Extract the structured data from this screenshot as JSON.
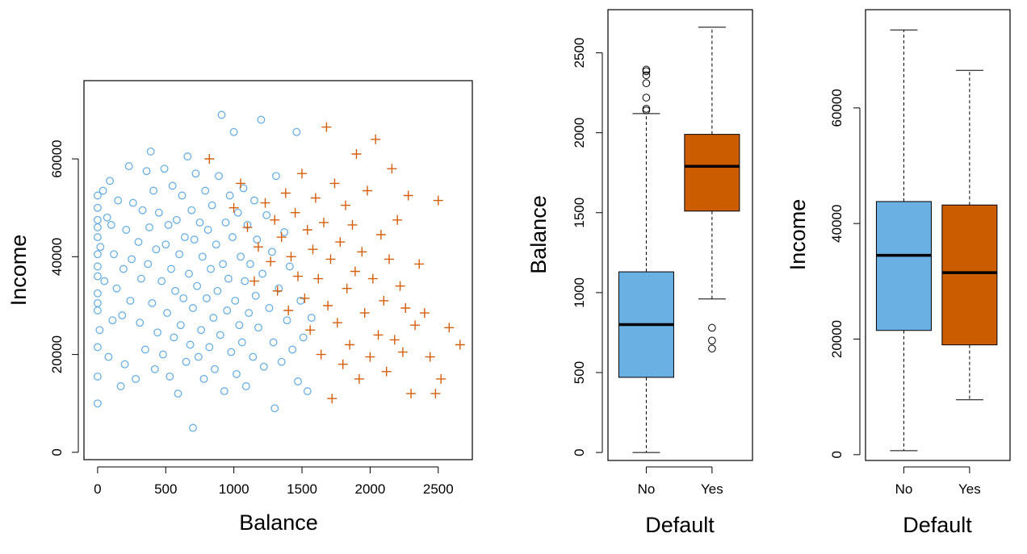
{
  "chart_data": [
    {
      "type": "scatter",
      "xlabel": "Balance",
      "ylabel": "Income",
      "xlim": [
        -100,
        2750
      ],
      "ylim": [
        -1500,
        76000
      ],
      "xticks": [
        "0",
        "500",
        "1000",
        "1500",
        "2000",
        "2500"
      ],
      "xtick_values": [
        0,
        500,
        1000,
        1500,
        2000,
        2500
      ],
      "yticks": [
        "0",
        "20000",
        "40000",
        "60000"
      ],
      "ytick_values": [
        0,
        20000,
        40000,
        60000
      ],
      "grid": false,
      "series": [
        {
          "name": "No",
          "marker": "circle",
          "color": "#6ab0e2",
          "points": [
            [
              0,
              10000
            ],
            [
              0,
              15500
            ],
            [
              0,
              21500
            ],
            [
              0,
              29000
            ],
            [
              0,
              30500
            ],
            [
              0,
              32500
            ],
            [
              0,
              36000
            ],
            [
              0,
              38000
            ],
            [
              0,
              40500
            ],
            [
              0,
              44000
            ],
            [
              0,
              46000
            ],
            [
              0,
              47500
            ],
            [
              0,
              50000
            ],
            [
              0,
              52500
            ],
            [
              15,
              25000
            ],
            [
              20,
              42000
            ],
            [
              40,
              53500
            ],
            [
              50,
              35000
            ],
            [
              70,
              48000
            ],
            [
              80,
              19500
            ],
            [
              90,
              55500
            ],
            [
              100,
              46500
            ],
            [
              110,
              27000
            ],
            [
              120,
              40500
            ],
            [
              140,
              33500
            ],
            [
              150,
              51500
            ],
            [
              170,
              13500
            ],
            [
              180,
              28000
            ],
            [
              190,
              37500
            ],
            [
              200,
              18000
            ],
            [
              210,
              45500
            ],
            [
              230,
              58500
            ],
            [
              240,
              31000
            ],
            [
              250,
              39500
            ],
            [
              260,
              51000
            ],
            [
              280,
              15000
            ],
            [
              300,
              43000
            ],
            [
              310,
              26500
            ],
            [
              320,
              35500
            ],
            [
              330,
              49500
            ],
            [
              350,
              21000
            ],
            [
              360,
              57500
            ],
            [
              370,
              38500
            ],
            [
              380,
              46000
            ],
            [
              390,
              61500
            ],
            [
              400,
              30500
            ],
            [
              410,
              53500
            ],
            [
              420,
              17000
            ],
            [
              430,
              41500
            ],
            [
              440,
              24500
            ],
            [
              450,
              49000
            ],
            [
              470,
              35000
            ],
            [
              480,
              20000
            ],
            [
              490,
              58000
            ],
            [
              500,
              42500
            ],
            [
              510,
              28500
            ],
            [
              520,
              46500
            ],
            [
              530,
              15500
            ],
            [
              540,
              37500
            ],
            [
              550,
              54500
            ],
            [
              560,
              23500
            ],
            [
              570,
              33000
            ],
            [
              580,
              47500
            ],
            [
              590,
              12000
            ],
            [
              600,
              40500
            ],
            [
              610,
              26000
            ],
            [
              620,
              52500
            ],
            [
              630,
              31500
            ],
            [
              640,
              44000
            ],
            [
              650,
              18500
            ],
            [
              660,
              60500
            ],
            [
              670,
              36500
            ],
            [
              680,
              22000
            ],
            [
              690,
              49500
            ],
            [
              700,
              5000
            ],
            [
              700,
              29500
            ],
            [
              710,
              43500
            ],
            [
              720,
              57000
            ],
            [
              730,
              34000
            ],
            [
              740,
              19500
            ],
            [
              750,
              47000
            ],
            [
              760,
              25000
            ],
            [
              770,
              40000
            ],
            [
              780,
              15000
            ],
            [
              790,
              53500
            ],
            [
              800,
              31500
            ],
            [
              810,
              45500
            ],
            [
              820,
              21500
            ],
            [
              830,
              37500
            ],
            [
              840,
              50500
            ],
            [
              850,
              27500
            ],
            [
              860,
              17000
            ],
            [
              870,
              42500
            ],
            [
              880,
              33000
            ],
            [
              890,
              56500
            ],
            [
              900,
              24000
            ],
            [
              910,
              69000
            ],
            [
              920,
              38500
            ],
            [
              930,
              12500
            ],
            [
              940,
              47000
            ],
            [
              950,
              29000
            ],
            [
              960,
              35500
            ],
            [
              970,
              52500
            ],
            [
              980,
              20500
            ],
            [
              990,
              44000
            ],
            [
              1000,
              65500
            ],
            [
              1010,
              31000
            ],
            [
              1020,
              16000
            ],
            [
              1030,
              49000
            ],
            [
              1040,
              26000
            ],
            [
              1050,
              40000
            ],
            [
              1060,
              22500
            ],
            [
              1070,
              54000
            ],
            [
              1080,
              35000
            ],
            [
              1090,
              13500
            ],
            [
              1100,
              46500
            ],
            [
              1110,
              28500
            ],
            [
              1120,
              38500
            ],
            [
              1140,
              19500
            ],
            [
              1150,
              51500
            ],
            [
              1160,
              32000
            ],
            [
              1170,
              43500
            ],
            [
              1180,
              25500
            ],
            [
              1200,
              68000
            ],
            [
              1210,
              36500
            ],
            [
              1220,
              17500
            ],
            [
              1240,
              48500
            ],
            [
              1260,
              29500
            ],
            [
              1280,
              41000
            ],
            [
              1290,
              22500
            ],
            [
              1300,
              9000
            ],
            [
              1310,
              56500
            ],
            [
              1330,
              33500
            ],
            [
              1350,
              18500
            ],
            [
              1370,
              45000
            ],
            [
              1390,
              27000
            ],
            [
              1410,
              38000
            ],
            [
              1430,
              21000
            ],
            [
              1460,
              65500
            ],
            [
              1470,
              14500
            ],
            [
              1490,
              31000
            ],
            [
              1510,
              23500
            ],
            [
              1540,
              12500
            ],
            [
              1570,
              27500
            ]
          ]
        },
        {
          "name": "Yes",
          "marker": "plus",
          "color": "#d45f0a",
          "points": [
            [
              820,
              60000
            ],
            [
              1000,
              50000
            ],
            [
              1050,
              55000
            ],
            [
              1100,
              46000
            ],
            [
              1150,
              35000
            ],
            [
              1180,
              42000
            ],
            [
              1230,
              51000
            ],
            [
              1270,
              39000
            ],
            [
              1300,
              47500
            ],
            [
              1320,
              33000
            ],
            [
              1350,
              44000
            ],
            [
              1380,
              53000
            ],
            [
              1400,
              29000
            ],
            [
              1420,
              40000
            ],
            [
              1450,
              49000
            ],
            [
              1470,
              36000
            ],
            [
              1500,
              57000
            ],
            [
              1520,
              31500
            ],
            [
              1540,
              45500
            ],
            [
              1560,
              25000
            ],
            [
              1580,
              41500
            ],
            [
              1600,
              52000
            ],
            [
              1620,
              35500
            ],
            [
              1640,
              20000
            ],
            [
              1660,
              47000
            ],
            [
              1680,
              66500
            ],
            [
              1690,
              30000
            ],
            [
              1710,
              39500
            ],
            [
              1720,
              11000
            ],
            [
              1740,
              55000
            ],
            [
              1760,
              26500
            ],
            [
              1780,
              43000
            ],
            [
              1800,
              18000
            ],
            [
              1820,
              50500
            ],
            [
              1830,
              33500
            ],
            [
              1850,
              22000
            ],
            [
              1870,
              46500
            ],
            [
              1890,
              37000
            ],
            [
              1900,
              61000
            ],
            [
              1920,
              15000
            ],
            [
              1940,
              41000
            ],
            [
              1960,
              28500
            ],
            [
              1980,
              53500
            ],
            [
              2000,
              19500
            ],
            [
              2020,
              35500
            ],
            [
              2040,
              64000
            ],
            [
              2060,
              24000
            ],
            [
              2080,
              44500
            ],
            [
              2100,
              31000
            ],
            [
              2120,
              16500
            ],
            [
              2140,
              39500
            ],
            [
              2160,
              58000
            ],
            [
              2180,
              23000
            ],
            [
              2200,
              47500
            ],
            [
              2220,
              34000
            ],
            [
              2240,
              20500
            ],
            [
              2260,
              29500
            ],
            [
              2280,
              52500
            ],
            [
              2300,
              12000
            ],
            [
              2330,
              26000
            ],
            [
              2360,
              38500
            ],
            [
              2400,
              28500
            ],
            [
              2440,
              19500
            ],
            [
              2480,
              12000
            ],
            [
              2500,
              51500
            ],
            [
              2520,
              15000
            ],
            [
              2580,
              25500
            ],
            [
              2660,
              22000
            ]
          ]
        }
      ]
    },
    {
      "type": "box",
      "xlabel": "Default",
      "ylabel": "Balance",
      "categories": [
        "No",
        "Yes"
      ],
      "ylim": [
        -50,
        2770
      ],
      "yticks": [
        "0",
        "500",
        "1000",
        "1500",
        "2000",
        "2500"
      ],
      "ytick_values": [
        0,
        500,
        1000,
        1500,
        2000,
        2500
      ],
      "boxes": [
        {
          "category": "No",
          "color": "#6ab0e2",
          "whisker_low": 0,
          "q1": 470,
          "median": 800,
          "q3": 1130,
          "whisker_high": 2120,
          "outliers": [
            2140,
            2150,
            2220,
            2310,
            2360,
            2385,
            2395
          ]
        },
        {
          "category": "Yes",
          "color": "#cc5c00",
          "whisker_low": 960,
          "q1": 1510,
          "median": 1790,
          "q3": 1990,
          "whisker_high": 2660,
          "outliers": [
            650,
            700,
            780
          ]
        }
      ]
    },
    {
      "type": "box",
      "xlabel": "Default",
      "ylabel": "Income",
      "categories": [
        "No",
        "Yes"
      ],
      "ylim": [
        -1000,
        77000
      ],
      "yticks": [
        "0",
        "20000",
        "40000",
        "60000"
      ],
      "ytick_values": [
        0,
        20000,
        40000,
        60000
      ],
      "boxes": [
        {
          "category": "No",
          "color": "#6ab0e2",
          "whisker_low": 700,
          "q1": 21500,
          "median": 34500,
          "q3": 43800,
          "whisker_high": 73500,
          "outliers": []
        },
        {
          "category": "Yes",
          "color": "#cc5c00",
          "whisker_low": 9500,
          "q1": 19000,
          "median": 31500,
          "q3": 43200,
          "whisker_high": 66500,
          "outliers": []
        }
      ]
    }
  ]
}
